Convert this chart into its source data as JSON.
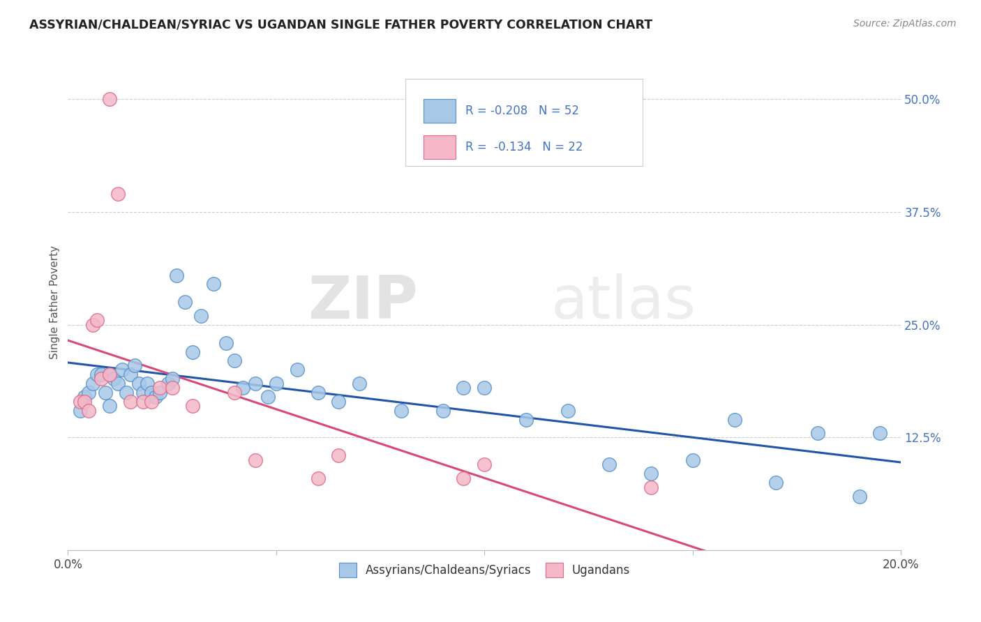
{
  "title": "ASSYRIAN/CHALDEAN/SYRIAC VS UGANDAN SINGLE FATHER POVERTY CORRELATION CHART",
  "source": "Source: ZipAtlas.com",
  "ylabel": "Single Father Poverty",
  "xlim": [
    0.0,
    0.2
  ],
  "ylim": [
    0.0,
    0.55
  ],
  "xtick_vals": [
    0.0,
    0.05,
    0.1,
    0.15,
    0.2
  ],
  "xtick_labels": [
    "0.0%",
    "",
    "",
    "",
    "20.0%"
  ],
  "ytick_right_vals": [
    0.125,
    0.25,
    0.375,
    0.5
  ],
  "ytick_right_labels": [
    "12.5%",
    "25.0%",
    "37.5%",
    "50.0%"
  ],
  "legend_label1": "Assyrians/Chaldeans/Syriacs",
  "legend_label2": "Ugandans",
  "r1": -0.208,
  "n1": 52,
  "r2": -0.134,
  "n2": 22,
  "color1": "#a8c8e8",
  "color2": "#f4b8c8",
  "edge_color1": "#5590c8",
  "edge_color2": "#e06888",
  "line_color1": "#2255aa",
  "line_color2": "#d84878",
  "watermark_zip": "ZIP",
  "watermark_atlas": "atlas",
  "blue_scatter_x": [
    0.003,
    0.004,
    0.005,
    0.006,
    0.007,
    0.008,
    0.009,
    0.01,
    0.01,
    0.011,
    0.012,
    0.013,
    0.014,
    0.015,
    0.016,
    0.017,
    0.018,
    0.019,
    0.02,
    0.021,
    0.022,
    0.024,
    0.025,
    0.026,
    0.028,
    0.03,
    0.032,
    0.035,
    0.038,
    0.04,
    0.042,
    0.045,
    0.048,
    0.05,
    0.055,
    0.06,
    0.065,
    0.07,
    0.08,
    0.09,
    0.095,
    0.1,
    0.11,
    0.12,
    0.13,
    0.14,
    0.15,
    0.16,
    0.17,
    0.18,
    0.19,
    0.195
  ],
  "blue_scatter_y": [
    0.155,
    0.17,
    0.175,
    0.185,
    0.195,
    0.195,
    0.175,
    0.16,
    0.195,
    0.19,
    0.185,
    0.2,
    0.175,
    0.195,
    0.205,
    0.185,
    0.175,
    0.185,
    0.175,
    0.17,
    0.175,
    0.185,
    0.19,
    0.305,
    0.275,
    0.22,
    0.26,
    0.295,
    0.23,
    0.21,
    0.18,
    0.185,
    0.17,
    0.185,
    0.2,
    0.175,
    0.165,
    0.185,
    0.155,
    0.155,
    0.18,
    0.18,
    0.145,
    0.155,
    0.095,
    0.085,
    0.1,
    0.145,
    0.075,
    0.13,
    0.06,
    0.13
  ],
  "pink_scatter_x": [
    0.003,
    0.004,
    0.005,
    0.006,
    0.007,
    0.008,
    0.01,
    0.012,
    0.015,
    0.018,
    0.022,
    0.025,
    0.03,
    0.04,
    0.045,
    0.06,
    0.065,
    0.095,
    0.1,
    0.14,
    0.01,
    0.02
  ],
  "pink_scatter_y": [
    0.165,
    0.165,
    0.155,
    0.25,
    0.255,
    0.19,
    0.5,
    0.395,
    0.165,
    0.165,
    0.18,
    0.18,
    0.16,
    0.175,
    0.1,
    0.08,
    0.105,
    0.08,
    0.095,
    0.07,
    0.195,
    0.165
  ]
}
